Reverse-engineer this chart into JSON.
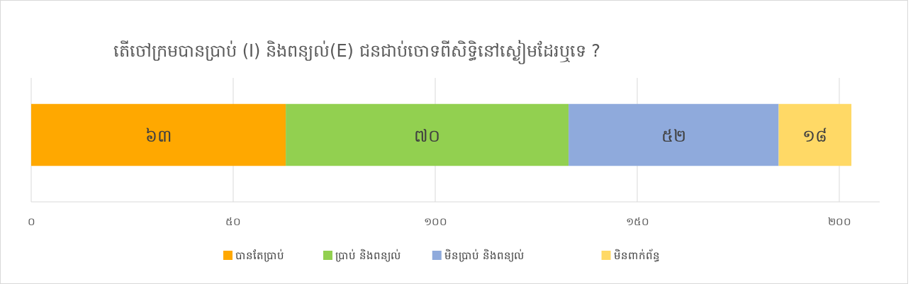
{
  "chart_data": {
    "type": "bar",
    "orientation": "horizontal",
    "stacked": true,
    "title": "តើចៅក្រមបានប្រាប់ (I) និងពន្យល់(E) ជនជាប់ចោទពីសិទ្ធិនៅស្ងៀមដែរឬទេ ?",
    "categories": [
      null
    ],
    "series": [
      {
        "name": "បានតែប្រាប់",
        "color": "#ffa800",
        "values": [
          63
        ],
        "value_labels": [
          "៦៣"
        ]
      },
      {
        "name": "ប្រាប់ និងពន្យល់",
        "color": "#92d050",
        "values": [
          70
        ],
        "value_labels": [
          "៧០"
        ]
      },
      {
        "name": "មិនប្រាប់ និងពន្យល់",
        "color": "#8faadc",
        "values": [
          52
        ],
        "value_labels": [
          "៥២"
        ]
      },
      {
        "name": "មិនពាក់ព័ន្ធ",
        "color": "#ffd966",
        "values": [
          18
        ],
        "value_labels": [
          "១៨"
        ]
      }
    ],
    "xticks": [
      {
        "value": 0,
        "label": "០"
      },
      {
        "value": 50,
        "label": "៥០"
      },
      {
        "value": 100,
        "label": "១០០"
      },
      {
        "value": 150,
        "label": "១៥០"
      },
      {
        "value": 200,
        "label": "២០០"
      }
    ],
    "xlim": [
      0,
      210
    ],
    "grid": "x",
    "legend": "bottom"
  }
}
